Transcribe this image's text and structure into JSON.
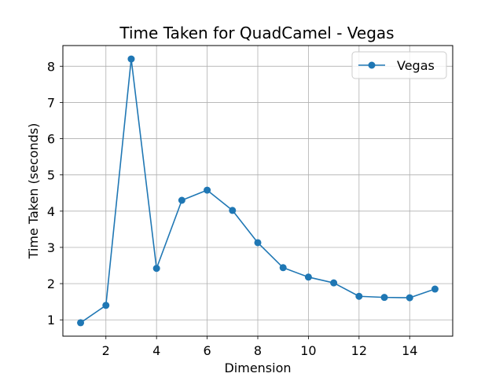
{
  "chart_data": {
    "type": "line",
    "title": "Time Taken for QuadCamel - Vegas",
    "xlabel": "Dimension",
    "ylabel": "Time Taken (seconds)",
    "xlim": [
      0.3,
      15.7
    ],
    "ylim": [
      0.55,
      8.57
    ],
    "xticks": [
      2,
      4,
      6,
      8,
      10,
      12,
      14
    ],
    "yticks": [
      1,
      2,
      3,
      4,
      5,
      6,
      7,
      8
    ],
    "grid": true,
    "legend_position": "top-right",
    "series": [
      {
        "name": "Vegas",
        "color": "#1f77b4",
        "marker": "circle",
        "x": [
          1,
          2,
          3,
          4,
          5,
          6,
          7,
          8,
          9,
          10,
          11,
          12,
          13,
          14,
          15
        ],
        "values": [
          0.92,
          1.4,
          8.2,
          2.42,
          4.3,
          4.58,
          4.02,
          3.13,
          2.44,
          2.18,
          2.02,
          1.65,
          1.62,
          1.61,
          1.85
        ]
      }
    ]
  }
}
